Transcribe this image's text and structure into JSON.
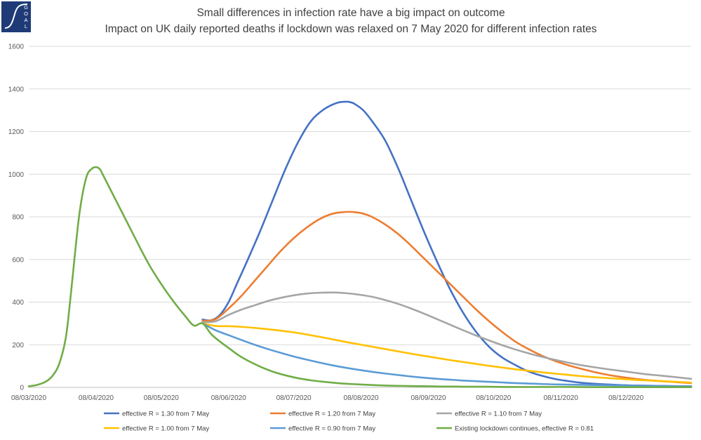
{
  "logo": {
    "text": "GOAL",
    "colors": {
      "navy": "#1f3b77",
      "white": "#ffffff"
    }
  },
  "chart_data": {
    "type": "line",
    "title": "Small differences in infection rate have a big impact on outcome",
    "subtitle": "Impact on UK daily reported deaths if lockdown was relaxed on 7 May 2020 for different infection rates",
    "xlabel": "",
    "ylabel": "",
    "ylim": [
      0,
      1600
    ],
    "yticks": [
      0,
      200,
      400,
      600,
      800,
      1000,
      1200,
      1400,
      1600
    ],
    "xlim_day": [
      0,
      305
    ],
    "xticks": [
      {
        "label": "08/03/2020",
        "day": 0
      },
      {
        "label": "08/04/2020",
        "day": 31
      },
      {
        "label": "08/05/2020",
        "day": 61
      },
      {
        "label": "08/06/2020",
        "day": 92
      },
      {
        "label": "08/07/2020",
        "day": 122
      },
      {
        "label": "08/08/2020",
        "day": 153
      },
      {
        "label": "08/09/2020",
        "day": 184
      },
      {
        "label": "08/10/2020",
        "day": 214
      },
      {
        "label": "08/11/2020",
        "day": 245
      },
      {
        "label": "08/12/2020",
        "day": 275
      }
    ],
    "grid": true,
    "legend_position": "bottom",
    "x_unit": "days since 08/03/2020",
    "series": [
      {
        "name": "effective R = 1.30 from 7 May",
        "color": "#4472c4",
        "x": [
          80,
          84,
          88,
          92,
          96,
          100,
          106,
          112,
          118,
          124,
          130,
          136,
          142,
          146,
          148,
          150,
          154,
          158,
          164,
          170,
          176,
          182,
          188,
          194,
          200,
          206,
          212,
          218,
          224,
          230,
          236,
          242,
          248,
          254,
          260,
          266,
          272,
          278,
          284,
          290,
          296,
          305
        ],
        "y": [
          318,
          315,
          340,
          400,
          490,
          580,
          720,
          870,
          1020,
          1150,
          1250,
          1305,
          1335,
          1340,
          1338,
          1330,
          1300,
          1250,
          1160,
          1030,
          880,
          730,
          590,
          460,
          350,
          260,
          190,
          140,
          105,
          75,
          55,
          40,
          30,
          22,
          17,
          14,
          11,
          9,
          8,
          7,
          6,
          5
        ]
      },
      {
        "name": "effective R = 1.20 from 7 May",
        "color": "#ed7d31",
        "x": [
          80,
          86,
          92,
          98,
          104,
          110,
          116,
          122,
          128,
          134,
          140,
          146,
          150,
          154,
          158,
          164,
          170,
          176,
          182,
          188,
          194,
          200,
          206,
          212,
          218,
          224,
          230,
          236,
          242,
          248,
          254,
          260,
          266,
          272,
          278,
          284,
          290,
          296,
          305
        ],
        "y": [
          312,
          320,
          370,
          430,
          500,
          570,
          640,
          700,
          750,
          790,
          815,
          823,
          822,
          815,
          800,
          765,
          720,
          665,
          605,
          545,
          485,
          425,
          365,
          310,
          260,
          215,
          180,
          150,
          125,
          105,
          88,
          73,
          60,
          50,
          42,
          35,
          30,
          26,
          20
        ]
      },
      {
        "name": "effective R = 1.10 from 7 May",
        "color": "#a5a5a5",
        "x": [
          80,
          86,
          92,
          98,
          104,
          110,
          116,
          122,
          128,
          134,
          140,
          146,
          152,
          158,
          164,
          170,
          176,
          182,
          188,
          194,
          200,
          206,
          212,
          218,
          224,
          230,
          236,
          242,
          248,
          254,
          260,
          266,
          272,
          278,
          284,
          290,
          296,
          305
        ],
        "y": [
          306,
          310,
          340,
          365,
          385,
          405,
          420,
          432,
          440,
          444,
          445,
          442,
          435,
          425,
          410,
          392,
          370,
          346,
          320,
          294,
          268,
          243,
          220,
          198,
          178,
          160,
          144,
          130,
          117,
          105,
          95,
          86,
          78,
          70,
          62,
          56,
          50,
          40
        ]
      },
      {
        "name": "effective R = 1.00 from 7 May",
        "color": "#ffc000",
        "x": [
          80,
          86,
          92,
          98,
          104,
          110,
          116,
          122,
          128,
          134,
          140,
          146,
          152,
          158,
          164,
          170,
          176,
          182,
          188,
          194,
          200,
          206,
          212,
          218,
          224,
          230,
          236,
          242,
          248,
          254,
          260,
          266,
          272,
          278,
          284,
          290,
          296,
          305
        ],
        "y": [
          300,
          288,
          287,
          284,
          279,
          273,
          266,
          258,
          248,
          237,
          225,
          213,
          202,
          191,
          180,
          169,
          158,
          148,
          138,
          128,
          119,
          110,
          101,
          93,
          85,
          78,
          71,
          65,
          59,
          53,
          48,
          44,
          40,
          36,
          33,
          30,
          27,
          22
        ]
      },
      {
        "name": "effective R = 0.90 from 7 May",
        "color": "#5b9bd5",
        "x": [
          80,
          86,
          92,
          98,
          104,
          110,
          116,
          122,
          128,
          134,
          140,
          146,
          152,
          158,
          164,
          170,
          176,
          182,
          188,
          194,
          200,
          206,
          212,
          218,
          224,
          230,
          236,
          242,
          248,
          254,
          260,
          266,
          272,
          278,
          284,
          290,
          296,
          305
        ],
        "y": [
          300,
          268,
          245,
          222,
          200,
          180,
          162,
          145,
          130,
          116,
          103,
          92,
          82,
          73,
          65,
          58,
          51,
          45,
          40,
          36,
          32,
          29,
          26,
          23,
          20,
          18,
          16,
          14,
          13,
          12,
          11,
          10,
          9,
          8,
          7,
          7,
          6,
          5
        ]
      },
      {
        "name": "Existing lockdown continues, effective R = 0.81",
        "color": "#70ad47",
        "x": [
          0,
          4,
          8,
          11,
          14,
          17,
          19,
          21,
          23,
          25,
          27,
          29,
          30,
          31,
          32,
          33,
          34,
          36,
          40,
          44,
          48,
          52,
          56,
          60,
          64,
          68,
          72,
          76,
          80,
          84,
          88,
          92,
          96,
          100,
          106,
          112,
          118,
          124,
          130,
          136,
          142,
          148,
          154,
          160,
          166,
          172,
          178,
          184,
          190,
          196,
          202,
          210,
          220,
          230,
          240,
          250,
          260,
          270,
          280,
          290,
          305
        ],
        "y": [
          5,
          12,
          28,
          55,
          110,
          230,
          400,
          600,
          790,
          920,
          1000,
          1025,
          1032,
          1033,
          1030,
          1020,
          1000,
          960,
          880,
          800,
          720,
          640,
          565,
          500,
          440,
          385,
          335,
          290,
          300,
          250,
          215,
          185,
          155,
          130,
          100,
          75,
          57,
          43,
          33,
          26,
          20,
          16,
          13,
          10,
          8,
          7,
          6,
          5,
          4,
          4,
          3,
          3,
          2,
          2,
          2,
          2,
          1,
          1,
          1,
          1,
          1
        ]
      }
    ]
  }
}
